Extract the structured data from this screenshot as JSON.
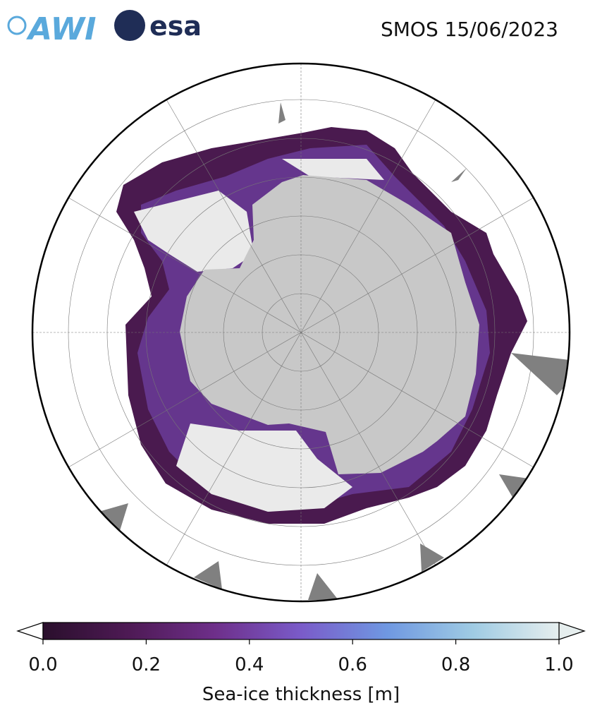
{
  "header": {
    "logos": [
      "AWI",
      "esa"
    ],
    "title": "SMOS 15/06/2023"
  },
  "colorbar": {
    "label": "Sea-ice thickness [m]",
    "lim": [
      0,
      1
    ],
    "ticks": [
      {
        "value": 0,
        "label": "0.0"
      },
      0.2,
      0.4,
      0.6,
      0.8,
      {
        "value": 1,
        "label": "1.0"
      }
    ],
    "colors": [
      "#2a0f2c",
      "#4e1a55",
      "#6e2f8a",
      "#7a5bc9",
      "#6f98e2",
      "#9fcbe3",
      "#e6eeee"
    ]
  }
}
